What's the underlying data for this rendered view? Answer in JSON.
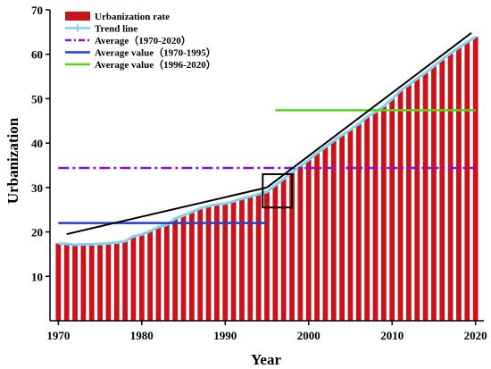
{
  "chart_data": {
    "type": "bar",
    "xlabel": "Year",
    "ylabel": "Urbanization",
    "xlim": [
      1969,
      2021
    ],
    "ylim": [
      0,
      70
    ],
    "x_ticks": [
      1970,
      1980,
      1990,
      2000,
      2010,
      2020
    ],
    "y_ticks": [
      10,
      20,
      30,
      40,
      50,
      60,
      70
    ],
    "legend_position": "top-left",
    "legend": [
      {
        "key": "bars",
        "label": "Urbanization rate"
      },
      {
        "key": "trend",
        "label": "Trend line"
      },
      {
        "key": "avg_all",
        "label": "Average（1970-2020）"
      },
      {
        "key": "avg_early",
        "label": "Average value（1970-1995）"
      },
      {
        "key": "avg_late",
        "label": "Average value（1996-2020）"
      }
    ],
    "colors": {
      "bars": "#c9121a",
      "bar_edge": "#ffffff",
      "trend": "#7fd3ee",
      "avg_all": "#8a10d0",
      "avg_early": "#1f3fd6",
      "avg_late": "#56d41a",
      "fit_lines": "#000000",
      "marker_box": "#000000"
    },
    "series": [
      {
        "name": "Urbanization rate",
        "x": [
          1970,
          1971,
          1972,
          1973,
          1974,
          1975,
          1976,
          1977,
          1978,
          1979,
          1980,
          1981,
          1982,
          1983,
          1984,
          1985,
          1986,
          1987,
          1988,
          1989,
          1990,
          1991,
          1992,
          1993,
          1994,
          1995,
          1996,
          1997,
          1998,
          1999,
          2000,
          2001,
          2002,
          2003,
          2004,
          2005,
          2006,
          2007,
          2008,
          2009,
          2010,
          2011,
          2012,
          2013,
          2014,
          2015,
          2016,
          2017,
          2018,
          2019,
          2020
        ],
        "values": [
          17.4,
          17.3,
          17.1,
          17.2,
          17.2,
          17.3,
          17.4,
          17.6,
          17.9,
          19.0,
          19.4,
          20.2,
          21.1,
          21.6,
          23.0,
          23.7,
          24.5,
          25.3,
          25.8,
          26.2,
          26.4,
          26.9,
          27.5,
          28.0,
          28.5,
          29.0,
          30.5,
          31.9,
          33.4,
          34.8,
          36.2,
          37.7,
          39.1,
          40.5,
          41.8,
          43.0,
          44.3,
          45.9,
          47.0,
          48.3,
          49.9,
          51.8,
          53.1,
          54.5,
          55.8,
          57.3,
          58.8,
          60.2,
          61.5,
          62.7,
          63.9
        ]
      }
    ],
    "reference_lines": [
      {
        "key": "avg_all",
        "value": 34.4,
        "x_from": 1970,
        "x_to": 2020,
        "style": "dash-dot"
      },
      {
        "key": "avg_early",
        "value": 22.0,
        "x_from": 1970,
        "x_to": 1995,
        "style": "solid"
      },
      {
        "key": "avg_late",
        "value": 47.4,
        "x_from": 1996,
        "x_to": 2020,
        "style": "solid"
      }
    ],
    "fit_lines": [
      {
        "from": [
          1971,
          19.5
        ],
        "to": [
          1995,
          30.0
        ]
      },
      {
        "from": [
          1995,
          30.0
        ],
        "to": [
          2019.5,
          64.8
        ]
      }
    ],
    "marker_box": {
      "x_from": 1994.5,
      "x_to": 1998,
      "y_from": 25.5,
      "y_to": 33.0
    }
  }
}
